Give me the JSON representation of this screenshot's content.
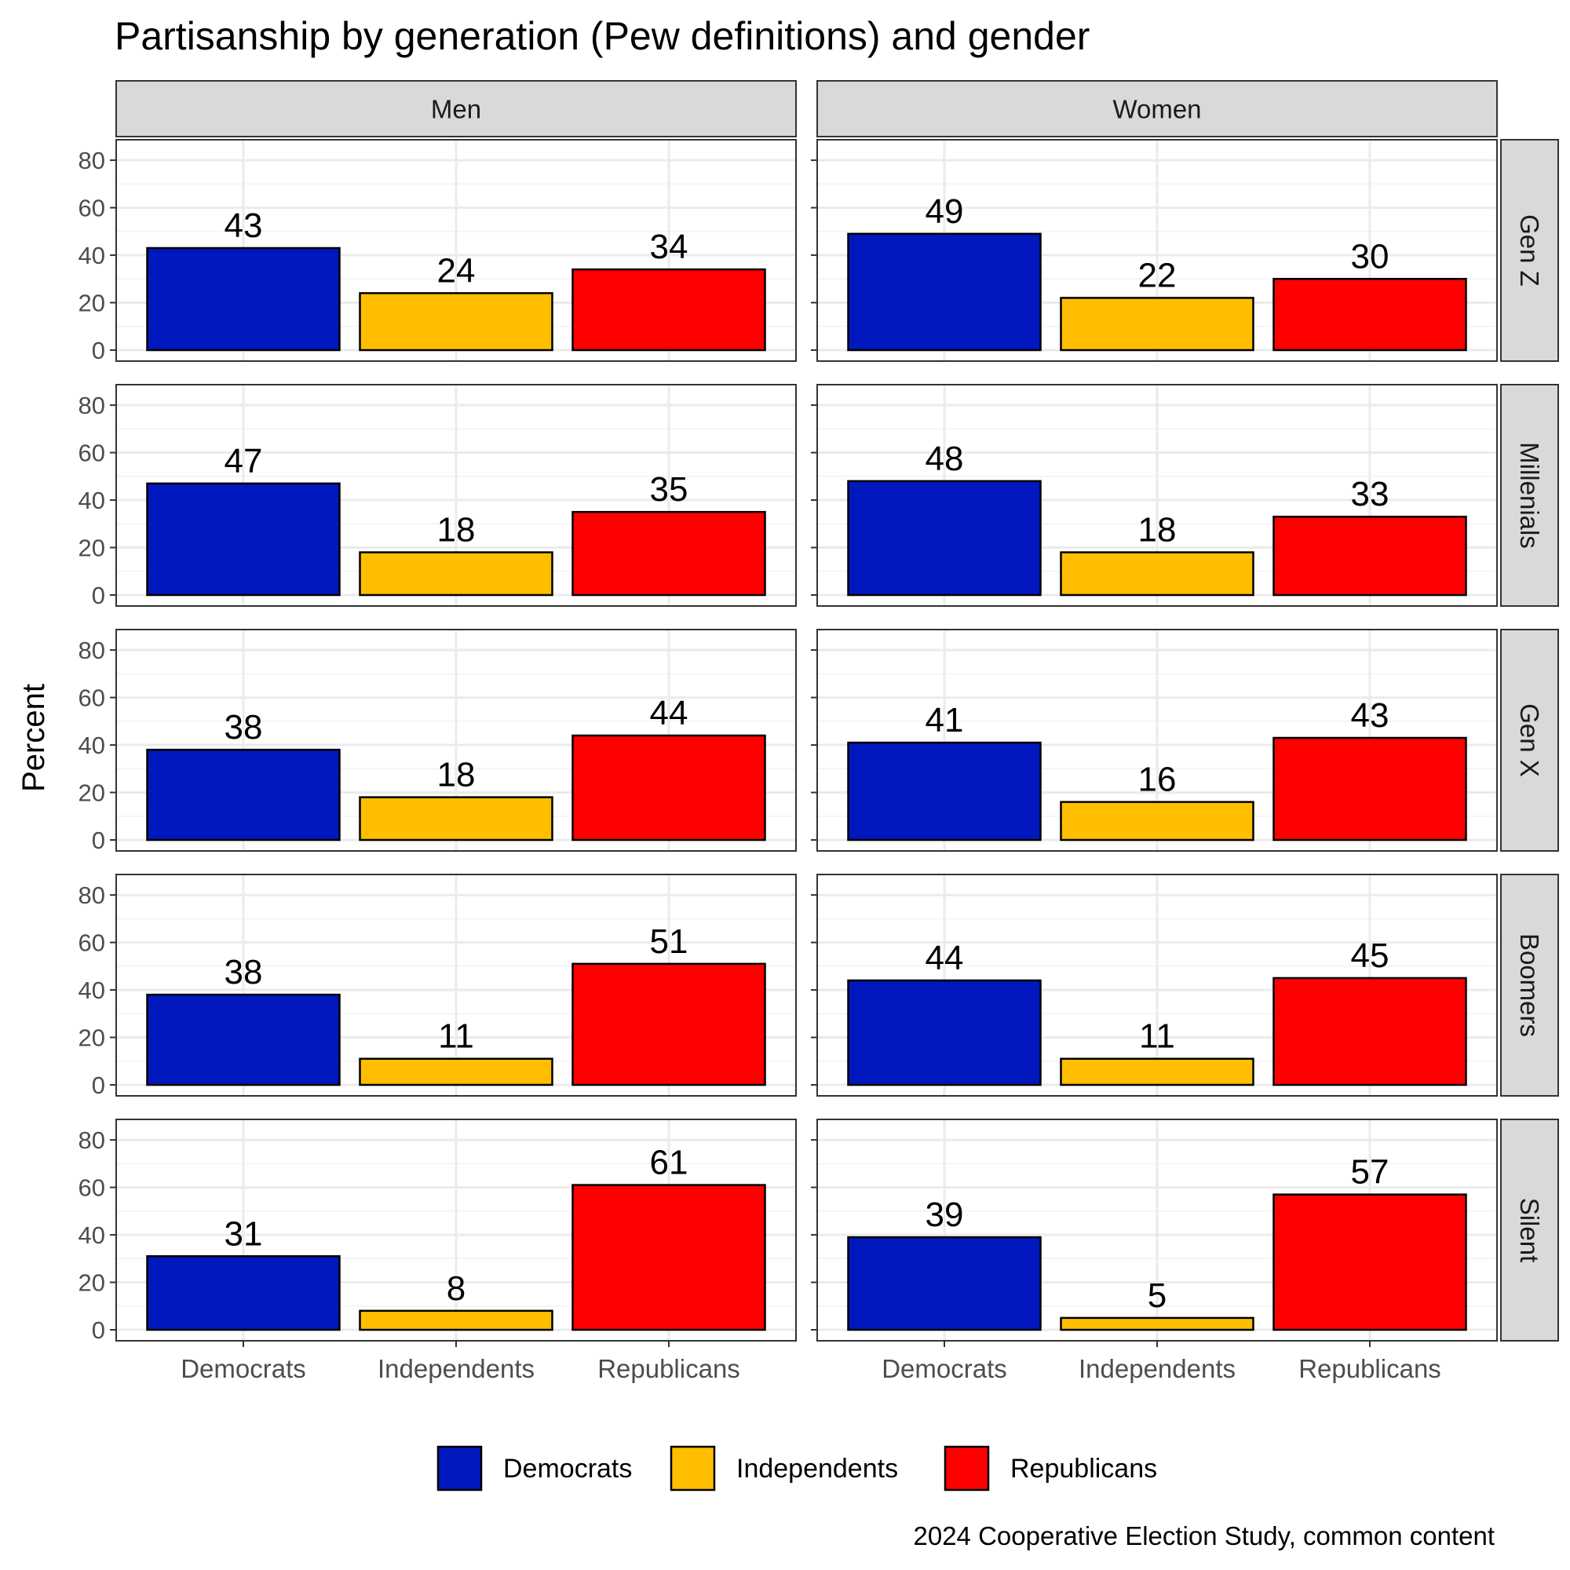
{
  "chart_data": {
    "type": "bar",
    "title": "Partisanship by generation (Pew definitions) and gender",
    "ylabel": "Percent",
    "xlabel": "",
    "caption": "2024 Cooperative Election Study, common content",
    "ylim": [
      0,
      84
    ],
    "yticks": [
      0,
      20,
      40,
      60,
      80
    ],
    "grid": true,
    "legend_position": "bottom",
    "categories": [
      "Democrats",
      "Independents",
      "Republicans"
    ],
    "colors": [
      "#0018BE",
      "#FFBE00",
      "#FF0000"
    ],
    "columns": [
      "Men",
      "Women"
    ],
    "rows": [
      "Gen Z",
      "Millenials",
      "Gen X",
      "Boomers",
      "Silent"
    ],
    "panels": [
      {
        "row": "Gen Z",
        "column": "Men",
        "values": [
          43,
          24,
          34
        ]
      },
      {
        "row": "Gen Z",
        "column": "Women",
        "values": [
          49,
          22,
          30
        ]
      },
      {
        "row": "Millenials",
        "column": "Men",
        "values": [
          47,
          18,
          35
        ]
      },
      {
        "row": "Millenials",
        "column": "Women",
        "values": [
          48,
          18,
          33
        ]
      },
      {
        "row": "Gen X",
        "column": "Men",
        "values": [
          38,
          18,
          44
        ]
      },
      {
        "row": "Gen X",
        "column": "Women",
        "values": [
          41,
          16,
          43
        ]
      },
      {
        "row": "Boomers",
        "column": "Men",
        "values": [
          38,
          11,
          51
        ]
      },
      {
        "row": "Boomers",
        "column": "Women",
        "values": [
          44,
          11,
          45
        ]
      },
      {
        "row": "Silent",
        "column": "Men",
        "values": [
          31,
          8,
          61
        ]
      },
      {
        "row": "Silent",
        "column": "Women",
        "values": [
          39,
          5,
          57
        ]
      }
    ]
  }
}
